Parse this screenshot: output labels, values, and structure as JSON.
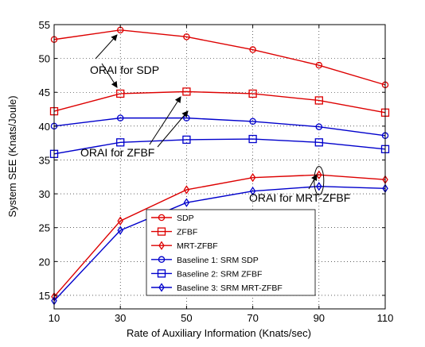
{
  "chart_data": {
    "type": "line",
    "xlabel": "Rate of Auxiliary Information (Knats/sec)",
    "ylabel": "System SEE (Knats/Joule)",
    "x": [
      10,
      30,
      50,
      70,
      90,
      110
    ],
    "xlim": [
      10,
      110
    ],
    "ylim": [
      13,
      55
    ],
    "xticks": [
      10,
      30,
      50,
      70,
      90,
      110
    ],
    "yticks": [
      15,
      20,
      25,
      30,
      35,
      40,
      45,
      50,
      55
    ],
    "grid": true,
    "legend_position": "bottom-center",
    "series": [
      {
        "name": "SDP",
        "color": "#dd0000",
        "marker": "circle",
        "values": [
          52.8,
          54.2,
          53.2,
          51.3,
          49.0,
          46.1
        ]
      },
      {
        "name": "ZFBF",
        "color": "#dd0000",
        "marker": "square",
        "values": [
          42.2,
          44.8,
          45.1,
          44.8,
          43.8,
          42.0
        ]
      },
      {
        "name": "MRT-ZFBF",
        "color": "#dd0000",
        "marker": "diamond",
        "values": [
          14.8,
          26.0,
          30.6,
          32.4,
          32.8,
          32.1
        ]
      },
      {
        "name": "Baseline 1: SRM SDP",
        "color": "#0000cc",
        "marker": "circle",
        "values": [
          40.0,
          41.2,
          41.2,
          40.7,
          39.9,
          38.6
        ]
      },
      {
        "name": "Baseline 2: SRM ZFBF",
        "color": "#0000cc",
        "marker": "square",
        "values": [
          35.9,
          37.6,
          38.0,
          38.1,
          37.6,
          36.6
        ]
      },
      {
        "name": "Baseline 3: SRM MRT-ZFBF",
        "color": "#0000cc",
        "marker": "diamond",
        "values": [
          14.2,
          24.6,
          28.7,
          30.4,
          31.1,
          30.8
        ]
      }
    ],
    "annotations": [
      {
        "text": "ORAI for SDP"
      },
      {
        "text": "ORAI for ZFBF"
      },
      {
        "text": "ORAI for MRT-ZFBF"
      }
    ]
  }
}
